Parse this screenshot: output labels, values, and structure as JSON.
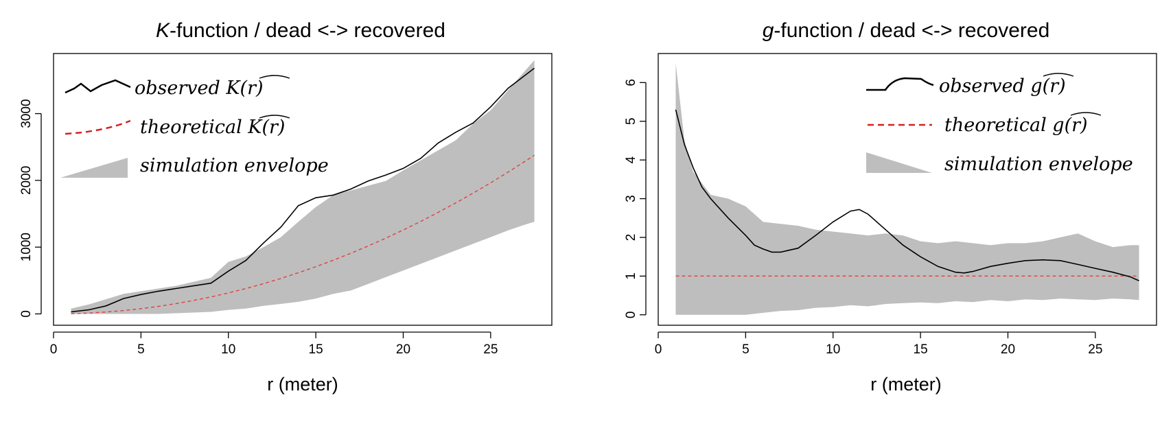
{
  "chart_data": [
    {
      "type": "line",
      "title_italic": "K",
      "title_rest": "-function / dead <-> recovered",
      "xlabel": "r (meter)",
      "ylabel": "",
      "xlim": [
        0,
        28.5
      ],
      "ylim": [
        -170,
        3900
      ],
      "xticks": [
        0,
        5,
        10,
        15,
        20,
        25
      ],
      "yticks": [
        0,
        1000,
        2000,
        3000
      ],
      "legend": {
        "position": "top-left",
        "observed": "observed",
        "observed_symbol": "K(r)",
        "theoretical": "theoretical",
        "theoretical_symbol": "K(r)",
        "envelope": "simulation envelope"
      },
      "colors": {
        "observed": "#000000",
        "theoretical": "#e04040",
        "envelope": "#bebebe"
      },
      "envelope_x": [
        1,
        2,
        3,
        4,
        5,
        6,
        7,
        8,
        9,
        10,
        11,
        12,
        13,
        14,
        15,
        16,
        17,
        18,
        19,
        20,
        21,
        22,
        23,
        24,
        25,
        26,
        27,
        27.5
      ],
      "envelope_upper": [
        80,
        140,
        220,
        300,
        340,
        380,
        420,
        480,
        540,
        780,
        860,
        1000,
        1150,
        1380,
        1600,
        1780,
        1850,
        1920,
        1990,
        2150,
        2300,
        2450,
        2600,
        2850,
        3050,
        3350,
        3650,
        3800
      ],
      "envelope_lower": [
        0,
        0,
        0,
        0,
        0,
        0,
        10,
        20,
        30,
        60,
        80,
        120,
        150,
        180,
        230,
        300,
        350,
        450,
        550,
        650,
        750,
        850,
        950,
        1050,
        1150,
        1250,
        1340,
        1380
      ],
      "observed_x": [
        1,
        2,
        3,
        4,
        5,
        6,
        7,
        8,
        9,
        10,
        11,
        12,
        13,
        14,
        15,
        16,
        17,
        18,
        19,
        20,
        21,
        22,
        23,
        24,
        25,
        26,
        27,
        27.5
      ],
      "observed_y": [
        30,
        60,
        120,
        230,
        290,
        340,
        380,
        420,
        460,
        640,
        800,
        1060,
        1300,
        1620,
        1740,
        1780,
        1870,
        1990,
        2080,
        2180,
        2330,
        2560,
        2720,
        2860,
        3100,
        3380,
        3580,
        3680
      ],
      "theoretical_x": [
        1,
        2,
        3,
        4,
        5,
        6,
        7,
        8,
        9,
        10,
        11,
        12,
        13,
        14,
        15,
        16,
        17,
        18,
        19,
        20,
        21,
        22,
        23,
        24,
        25,
        26,
        27,
        27.5
      ],
      "theoretical_y": [
        3,
        13,
        28,
        50,
        79,
        113,
        154,
        201,
        254,
        314,
        380,
        452,
        531,
        616,
        707,
        804,
        908,
        1018,
        1134,
        1257,
        1385,
        1521,
        1662,
        1810,
        1963,
        2124,
        2290,
        2376
      ]
    },
    {
      "type": "line",
      "title_italic": "g",
      "title_rest": "-function / dead <-> recovered",
      "xlabel": "r (meter)",
      "ylabel": "",
      "xlim": [
        0,
        28.5
      ],
      "ylim": [
        -0.27,
        6.75
      ],
      "xticks": [
        0,
        5,
        10,
        15,
        20,
        25
      ],
      "yticks": [
        0,
        1,
        2,
        3,
        4,
        5,
        6
      ],
      "legend": {
        "position": "top-right",
        "observed": "observed",
        "observed_symbol": "g(r)",
        "theoretical": "theoretical",
        "theoretical_symbol": "g(r)",
        "envelope": "simulation envelope"
      },
      "colors": {
        "observed": "#000000",
        "theoretical": "#e04040",
        "envelope": "#bebebe"
      },
      "envelope_x": [
        1,
        1.5,
        2,
        3,
        4,
        5,
        6,
        7,
        8,
        9,
        10,
        11,
        12,
        13,
        14,
        15,
        16,
        17,
        18,
        19,
        20,
        21,
        22,
        23,
        24,
        25,
        26,
        27,
        27.5
      ],
      "envelope_upper": [
        6.5,
        4.5,
        3.7,
        3.1,
        3.0,
        2.8,
        2.4,
        2.35,
        2.3,
        2.2,
        2.15,
        2.1,
        2.05,
        2.1,
        2.05,
        1.9,
        1.85,
        1.9,
        1.85,
        1.8,
        1.85,
        1.85,
        1.9,
        2.0,
        2.1,
        1.9,
        1.75,
        1.8,
        1.8
      ],
      "envelope_lower": [
        0,
        0,
        0,
        0,
        0,
        0,
        0.05,
        0.1,
        0.12,
        0.18,
        0.2,
        0.25,
        0.22,
        0.28,
        0.3,
        0.32,
        0.3,
        0.35,
        0.33,
        0.38,
        0.35,
        0.4,
        0.38,
        0.42,
        0.4,
        0.38,
        0.42,
        0.4,
        0.38
      ],
      "observed_x": [
        1,
        1.5,
        2,
        2.5,
        3,
        4,
        5,
        5.5,
        6,
        6.5,
        7,
        8,
        9,
        10,
        11,
        11.5,
        12,
        13,
        14,
        15,
        16,
        17,
        17.5,
        18,
        19,
        20,
        21,
        22,
        23,
        24,
        25,
        26,
        27,
        27.5
      ],
      "observed_y": [
        5.3,
        4.4,
        3.8,
        3.3,
        3.0,
        2.5,
        2.05,
        1.8,
        1.7,
        1.62,
        1.62,
        1.72,
        2.05,
        2.4,
        2.68,
        2.72,
        2.6,
        2.2,
        1.8,
        1.5,
        1.25,
        1.1,
        1.08,
        1.12,
        1.25,
        1.33,
        1.4,
        1.42,
        1.4,
        1.3,
        1.2,
        1.1,
        0.98,
        0.88
      ],
      "theoretical_value": 1
    }
  ]
}
